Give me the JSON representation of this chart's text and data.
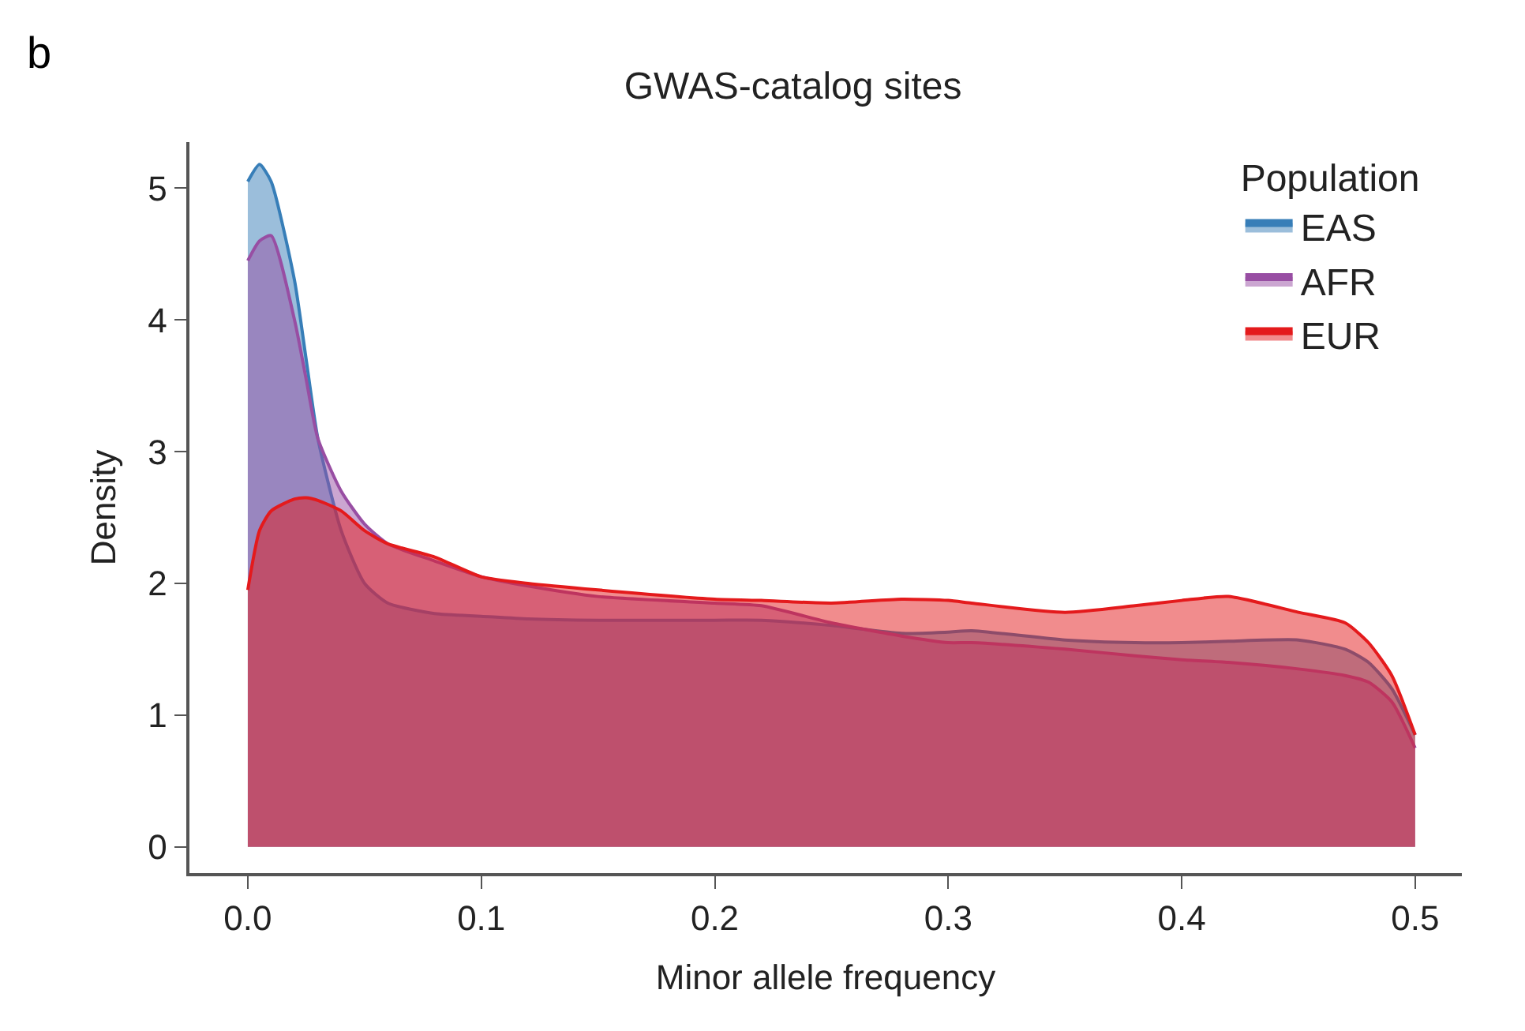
{
  "chart_data": {
    "type": "area",
    "title": "GWAS-catalog sites",
    "xlabel": "Minor allele frequency",
    "ylabel": "Density",
    "legend_title": "Population",
    "annotations": [
      "b"
    ],
    "x": [
      0,
      0.005,
      0.01,
      0.02,
      0.025,
      0.03,
      0.04,
      0.05,
      0.06,
      0.08,
      0.1,
      0.12,
      0.15,
      0.2,
      0.22,
      0.25,
      0.28,
      0.3,
      0.31,
      0.35,
      0.38,
      0.4,
      0.42,
      0.45,
      0.47,
      0.48,
      0.49,
      0.5
    ],
    "series": [
      {
        "name": "EAS",
        "color": "#377eb8",
        "values": [
          5.05,
          5.18,
          5.05,
          4.3,
          3.7,
          3.1,
          2.4,
          2.0,
          1.85,
          1.77,
          1.75,
          1.73,
          1.72,
          1.72,
          1.72,
          1.68,
          1.62,
          1.63,
          1.64,
          1.57,
          1.55,
          1.55,
          1.56,
          1.57,
          1.5,
          1.4,
          1.2,
          0.85
        ]
      },
      {
        "name": "AFR",
        "color": "#984ea3",
        "values": [
          4.45,
          4.6,
          4.64,
          4.0,
          3.55,
          3.1,
          2.7,
          2.45,
          2.3,
          2.17,
          2.05,
          1.98,
          1.9,
          1.85,
          1.83,
          1.7,
          1.6,
          1.55,
          1.55,
          1.5,
          1.45,
          1.42,
          1.4,
          1.35,
          1.3,
          1.25,
          1.1,
          0.75
        ]
      },
      {
        "name": "EUR",
        "color": "#e41a1c",
        "values": [
          1.95,
          2.4,
          2.55,
          2.64,
          2.65,
          2.63,
          2.55,
          2.4,
          2.3,
          2.2,
          2.05,
          2.0,
          1.95,
          1.88,
          1.87,
          1.85,
          1.88,
          1.87,
          1.85,
          1.78,
          1.83,
          1.87,
          1.9,
          1.78,
          1.7,
          1.55,
          1.3,
          0.85
        ]
      }
    ],
    "xlim": [
      -0.025,
      0.52
    ],
    "ylim": [
      -0.2,
      5.35
    ],
    "xticks": [
      {
        "value": 0,
        "label": "0.0"
      },
      0.1,
      0.2,
      0.3,
      0.4,
      0.5
    ],
    "yticks": [
      0,
      1,
      2,
      3,
      4,
      5
    ],
    "legend": "top right"
  }
}
